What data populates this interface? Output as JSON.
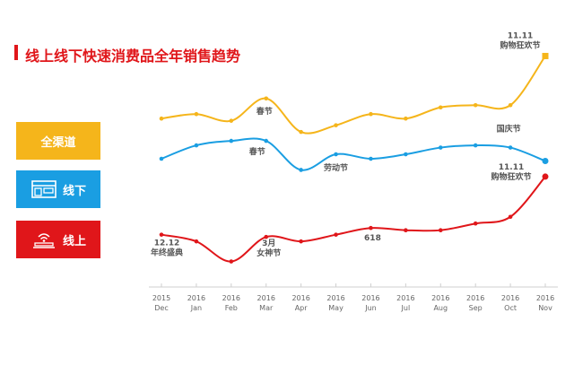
{
  "header": {
    "title": "线上线下快速消费品全年销售趋势"
  },
  "legend": {
    "total": "全渠道",
    "offline": "线下",
    "online": "线上"
  },
  "colors": {
    "total": "#f5b51b",
    "offline": "#1a9ee2",
    "online": "#e0161a",
    "accent": "#e0161a"
  },
  "chart_data": {
    "type": "line",
    "title": "线上线下快速消费品全年销售趋势",
    "x_years": [
      "2015",
      "2016",
      "2016",
      "2016",
      "2016",
      "2016",
      "2016",
      "2016",
      "2016",
      "2016",
      "2016",
      "2016"
    ],
    "categories": [
      "Dec",
      "Jan",
      "Feb",
      "Mar",
      "Apr",
      "May",
      "Jun",
      "Jul",
      "Aug",
      "Sep",
      "Oct",
      "Nov"
    ],
    "ylim": [
      0,
      100
    ],
    "grid": false,
    "series": [
      {
        "name": "全渠道",
        "key": "total",
        "values": [
          69,
          71,
          68,
          78,
          63,
          66,
          71,
          69,
          74,
          75,
          75,
          97
        ]
      },
      {
        "name": "线下",
        "key": "offline",
        "values": [
          51,
          57,
          59,
          59,
          46,
          53,
          51,
          53,
          56,
          57,
          56,
          50
        ]
      },
      {
        "name": "线上",
        "key": "online",
        "values": [
          17,
          14,
          5,
          16,
          14,
          17,
          20,
          19,
          19,
          22,
          25,
          43
        ]
      }
    ],
    "annotations": [
      {
        "series": "total",
        "index": 11,
        "lines": [
          "11.11",
          "购物狂欢节"
        ]
      },
      {
        "series": "total",
        "index": 3,
        "lines": [
          "春节"
        ]
      },
      {
        "series": "offline",
        "index": 3,
        "lines": [
          "春节"
        ]
      },
      {
        "series": "offline",
        "index": 5,
        "lines": [
          "劳动节"
        ]
      },
      {
        "series": "offline",
        "index": 10,
        "lines": [
          "国庆节"
        ]
      },
      {
        "series": "online",
        "index": 11,
        "lines": [
          "11.11",
          "购物狂欢节"
        ]
      },
      {
        "series": "online",
        "index": 0,
        "lines": [
          "12.12",
          "年终盛典"
        ]
      },
      {
        "series": "online",
        "index": 3,
        "lines": [
          "3月",
          "女神节"
        ]
      },
      {
        "series": "online",
        "index": 6,
        "lines": [
          "618"
        ]
      }
    ]
  }
}
